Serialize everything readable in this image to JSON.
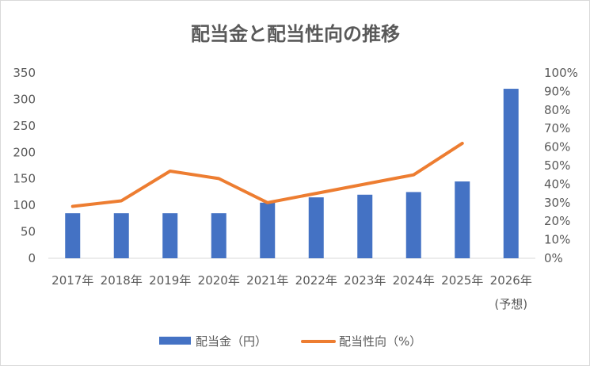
{
  "chart_data": {
    "type": "bar",
    "title": "配当金と配当性向の推移",
    "categories": [
      "2017年",
      "2018年",
      "2019年",
      "2020年",
      "2021年",
      "2022年",
      "2023年",
      "2024年",
      "2025年",
      "2026年"
    ],
    "category_sublabels": [
      "",
      "",
      "",
      "",
      "",
      "",
      "",
      "",
      "",
      "(予想)"
    ],
    "series": [
      {
        "name": "配当金（円）",
        "type": "bar",
        "axis": "left",
        "color": "#4472c4",
        "values": [
          85,
          85,
          85,
          85,
          105,
          115,
          120,
          125,
          145,
          320
        ]
      },
      {
        "name": "配当性向（%）",
        "type": "line",
        "axis": "right",
        "color": "#ed7d31",
        "values": [
          28,
          31,
          47,
          43,
          30,
          35,
          40,
          45,
          62,
          null
        ]
      }
    ],
    "y_left": {
      "min": 0,
      "max": 350,
      "step": 50,
      "tick_labels": [
        "0",
        "50",
        "100",
        "150",
        "200",
        "250",
        "300",
        "350"
      ]
    },
    "y_right": {
      "min": 0,
      "max": 100,
      "step": 10,
      "tick_labels": [
        "0%",
        "10%",
        "20%",
        "30%",
        "40%",
        "50%",
        "60%",
        "70%",
        "80%",
        "90%",
        "100%"
      ]
    },
    "grid": false,
    "legend_position": "bottom"
  }
}
